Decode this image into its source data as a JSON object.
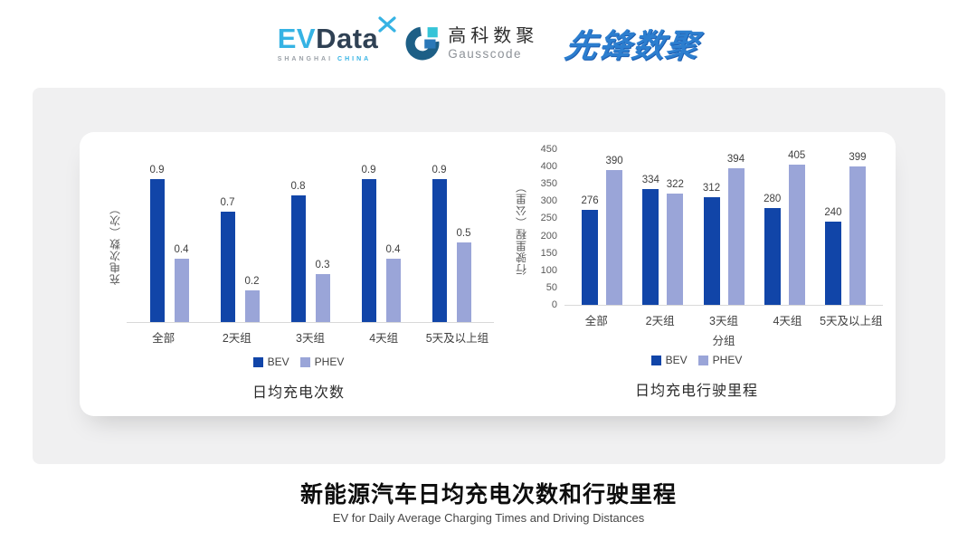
{
  "header": {
    "evdata": {
      "ev": "EV",
      "data": "Data",
      "tagline_city": "SHANGHAI",
      "tagline_country": "CHINA"
    },
    "gausscode": {
      "cn": "高科数聚",
      "en": "Gausscode"
    },
    "pioneer": {
      "text": "先锋数聚"
    }
  },
  "colors": {
    "series": [
      "#1145a8",
      "#9aa5d8"
    ],
    "accent_cyan": "#36b3e4",
    "logo_navy": "#2f4154",
    "gauss_dark": "#1d5f86",
    "pioneer_blue": "#2c7ecf",
    "axis_gray": "#d9d9d9",
    "card_gray": "#f0f0f1"
  },
  "chart_data": [
    {
      "type": "bar",
      "title": "日均充电次数",
      "categories": [
        "全部",
        "2天组",
        "3天组",
        "4天组",
        "5天及以上组"
      ],
      "series": [
        {
          "name": "BEV",
          "values": [
            0.9,
            0.7,
            0.8,
            0.9,
            0.9
          ]
        },
        {
          "name": "PHEV",
          "values": [
            0.4,
            0.2,
            0.3,
            0.4,
            0.5
          ]
        }
      ],
      "xlabel": "",
      "ylabel": "充电次数（次）",
      "ylim": [
        0,
        1.0
      ],
      "yticks": [],
      "grid": false,
      "legend_position": "bottom"
    },
    {
      "type": "bar",
      "title": "日均充电行驶里程",
      "categories": [
        "全部",
        "2天组",
        "3天组",
        "4天组",
        "5天及以上组"
      ],
      "series": [
        {
          "name": "BEV",
          "values": [
            276,
            334,
            312,
            280,
            240
          ]
        },
        {
          "name": "PHEV",
          "values": [
            390,
            322,
            394,
            405,
            399
          ]
        }
      ],
      "xlabel": "分组",
      "ylabel": "行驶里程（公里）",
      "ylim": [
        0,
        450
      ],
      "yticks": [
        0,
        50,
        100,
        150,
        200,
        250,
        300,
        350,
        400,
        450
      ],
      "grid": false,
      "legend_position": "bottom"
    }
  ],
  "footer": {
    "title": "新能源汽车日均充电次数和行驶里程",
    "subtitle": "EV for Daily Average Charging Times and Driving Distances"
  }
}
